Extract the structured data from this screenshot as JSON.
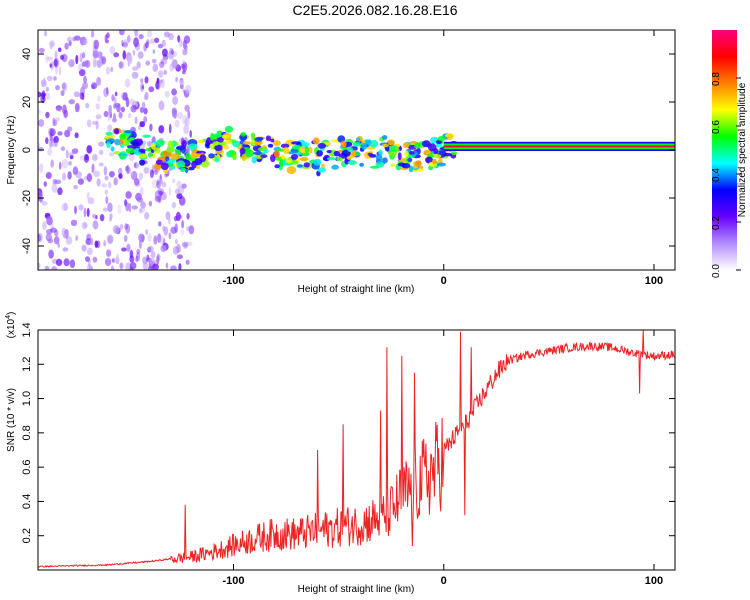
{
  "title": "C2E5.2026.082.16.28.E16",
  "chart_data": [
    {
      "type": "heatmap",
      "name": "spectrogram",
      "xlabel": "Height of straight line (km)",
      "ylabel": "Frequency (Hz)",
      "xlim": [
        -193,
        110
      ],
      "ylim": [
        -50,
        50
      ],
      "xticks": [
        -100,
        0,
        100
      ],
      "xtick_labels": [
        "-100",
        "0",
        "100"
      ],
      "yticks": [
        -40,
        -20,
        0,
        20,
        40
      ],
      "ytick_labels": [
        "-40",
        "-20",
        "0",
        "20",
        "40"
      ],
      "grid": false,
      "colorbar": {
        "label": "Normalized spectral amplitude",
        "range": [
          0,
          1
        ],
        "ticks": [
          0.0,
          0.2,
          0.4,
          0.6,
          0.8
        ],
        "tick_labels": [
          "0.0",
          "0.2",
          "0.4",
          "0.6",
          "0.8"
        ],
        "colors": [
          "#ffffff",
          "#b48cff",
          "#6600ff",
          "#0000ff",
          "#00ffff",
          "#00ff00",
          "#ffff00",
          "#ff8000",
          "#ff0000",
          "#ff0080"
        ]
      },
      "features": [
        {
          "description": "scattered noise",
          "x_range": [
            -193,
            -120
          ],
          "freq_range": [
            -50,
            50
          ],
          "amplitude": 0.2
        },
        {
          "description": "signal band",
          "x_range": [
            -160,
            5
          ],
          "freq_center": 0,
          "freq_halfwidth": 6,
          "amplitude": 0.6
        },
        {
          "description": "steady tone",
          "x_range": [
            0,
            110
          ],
          "freq_center": 1.5,
          "freq_halfwidth": 1.2,
          "amplitude": 0.95
        }
      ]
    },
    {
      "type": "line",
      "name": "snr",
      "xlabel": "Height of straight line (km)",
      "ylabel": "SNR (10 * v/v)",
      "yscale_label": "(x10",
      "yscale_exp": "4",
      "xlim": [
        -193,
        110
      ],
      "ylim": [
        0,
        1.4
      ],
      "xticks": [
        -100,
        0,
        100
      ],
      "xtick_labels": [
        "-100",
        "0",
        "100"
      ],
      "yticks": [
        0.2,
        0.4,
        0.6,
        0.8,
        1.0,
        1.2,
        1.4
      ],
      "ytick_labels": [
        "0.2",
        "0.4",
        "0.6",
        "0.8",
        "1.0",
        "1.2",
        "1.4"
      ],
      "grid": false,
      "color": "#ee2222",
      "x": [
        -193,
        -160,
        -150,
        -140,
        -120,
        -110,
        -100,
        -90,
        -80,
        -70,
        -60,
        -50,
        -40,
        -35,
        -30,
        -25,
        -20,
        -15,
        -10,
        -5,
        0,
        5,
        10,
        15,
        20,
        25,
        30,
        40,
        50,
        60,
        70,
        80,
        90,
        100,
        110
      ],
      "y": [
        0.02,
        0.03,
        0.04,
        0.05,
        0.08,
        0.11,
        0.15,
        0.19,
        0.22,
        0.22,
        0.24,
        0.26,
        0.28,
        0.3,
        0.32,
        0.36,
        0.45,
        0.5,
        0.55,
        0.6,
        0.7,
        0.78,
        0.85,
        0.95,
        1.05,
        1.15,
        1.22,
        1.26,
        1.28,
        1.3,
        1.31,
        1.3,
        1.27,
        1.25,
        1.26
      ],
      "peaks": [
        {
          "x": -123,
          "y": 0.38
        },
        {
          "x": -60,
          "y": 0.7
        },
        {
          "x": -48,
          "y": 0.85
        },
        {
          "x": -30,
          "y": 0.93
        },
        {
          "x": -27,
          "y": 1.3
        },
        {
          "x": -20,
          "y": 1.25
        },
        {
          "x": -14,
          "y": 1.15
        },
        {
          "x": 8,
          "y": 1.39
        },
        {
          "x": 13,
          "y": 1.3
        },
        {
          "x": 95,
          "y": 1.4
        }
      ],
      "dips": [
        {
          "x": -15,
          "y": 0.14
        },
        {
          "x": 10,
          "y": 0.32
        },
        {
          "x": 93,
          "y": 1.03
        }
      ]
    }
  ]
}
